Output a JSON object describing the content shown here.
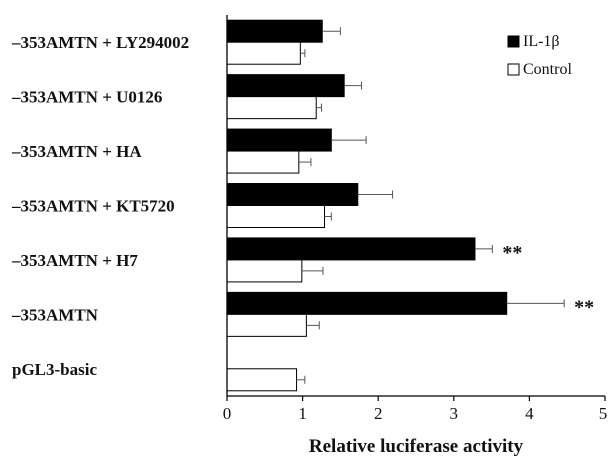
{
  "chart_data": {
    "type": "bar",
    "orientation": "horizontal",
    "xlabel": "Relative luciferase activity",
    "xlim": [
      0,
      5
    ],
    "xticks": [
      "0",
      "1",
      "2",
      "3",
      "4",
      "5"
    ],
    "legend_position": "top-right",
    "categories": [
      "–353AMTN + LY294002",
      "–353AMTN + U0126",
      "–353AMTN + HA",
      "–353AMTN + KT5720",
      "–353AMTN + H7",
      "–353AMTN",
      "pGL3-basic"
    ],
    "series": [
      {
        "name": "IL-1β",
        "color": "#000000",
        "values": [
          1.26,
          1.55,
          1.38,
          1.73,
          3.28,
          3.7,
          null
        ],
        "errors": [
          0.24,
          0.23,
          0.46,
          0.46,
          0.23,
          0.76,
          null
        ]
      },
      {
        "name": "Control",
        "color": "#ffffff",
        "values": [
          0.97,
          1.18,
          0.95,
          1.29,
          0.99,
          1.05,
          0.92
        ],
        "errors": [
          0.06,
          0.07,
          0.16,
          0.09,
          0.28,
          0.17,
          0.11
        ]
      }
    ],
    "annotations": [
      {
        "category_index": 4,
        "text": "**"
      },
      {
        "category_index": 5,
        "text": "**"
      }
    ]
  }
}
